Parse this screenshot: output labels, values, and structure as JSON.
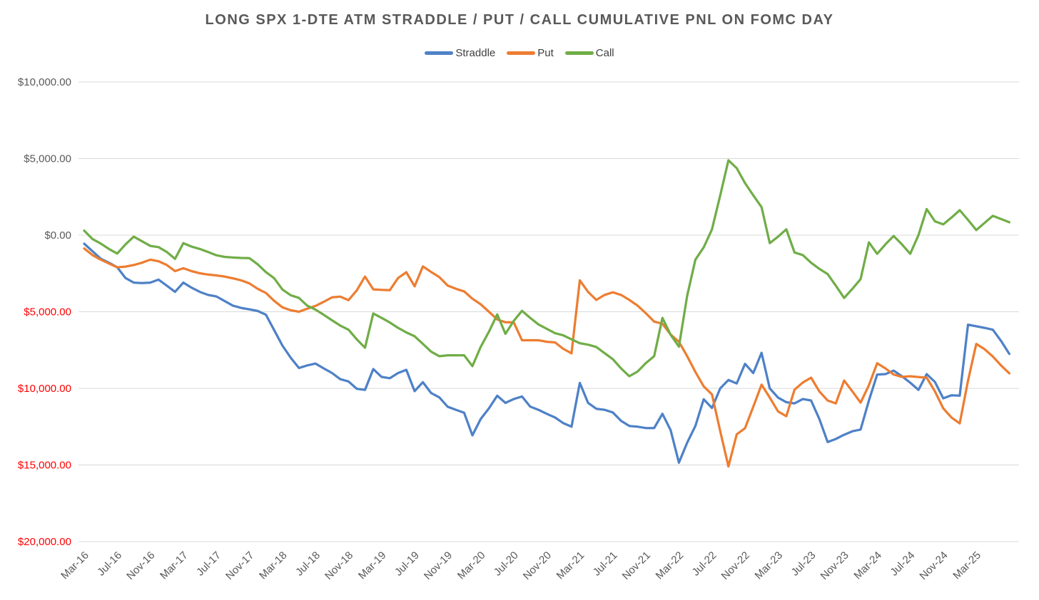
{
  "title": "LONG SPX 1-DTE ATM STRADDLE / PUT / CALL CUMULATIVE PNL ON FOMC DAY",
  "colors": {
    "axis_text": "#595959",
    "negative_axis_text": "#FF0000",
    "gridline": "#D9D9D9",
    "background": "#FFFFFF"
  },
  "chart_data": {
    "type": "line",
    "title": "LONG SPX 1-DTE ATM STRADDLE / PUT / CALL CUMULATIVE PNL ON FOMC DAY",
    "xlabel": "",
    "ylabel": "",
    "grid": "horizontal",
    "legend_position": "top-center",
    "ylim": [
      -20000,
      10000
    ],
    "y_ticks": [
      {
        "label": "$10,000.00",
        "value": 10000
      },
      {
        "label": "$5,000.00",
        "value": 5000
      },
      {
        "label": "$0.00",
        "value": 0
      },
      {
        "label": "$5,000.00",
        "value": -5000
      },
      {
        "label": "$10,000.00",
        "value": -10000
      },
      {
        "label": "$15,000.00",
        "value": -15000
      },
      {
        "label": "$20,000.00",
        "value": -20000
      }
    ],
    "x_tick_labels": [
      "Mar-16",
      "Jul-16",
      "Nov-16",
      "Mar-17",
      "Jul-17",
      "Nov-17",
      "Mar-18",
      "Jul-18",
      "Nov-18",
      "Mar-19",
      "Jul-19",
      "Nov-19",
      "Mar-20",
      "Jul-20",
      "Nov-20",
      "Mar-21",
      "Jul-21",
      "Nov-21",
      "Mar-22",
      "Jul-22",
      "Nov-22",
      "Mar-23",
      "Jul-23",
      "Nov-23",
      "Mar-24",
      "Jul-24",
      "Nov-24",
      "Mar-25"
    ],
    "x_label_every_n_points": 4,
    "points_per_series": 113,
    "series": [
      {
        "name": "Straddle",
        "color": "#4E81C7",
        "values": [
          -560,
          -1050,
          -1540,
          -1800,
          -2100,
          -2800,
          -3100,
          -3130,
          -3100,
          -2900,
          -3300,
          -3700,
          -3100,
          -3430,
          -3700,
          -3900,
          -4000,
          -4300,
          -4600,
          -4750,
          -4840,
          -4950,
          -5190,
          -6200,
          -7210,
          -8000,
          -8670,
          -8500,
          -8380,
          -8700,
          -9000,
          -9400,
          -9550,
          -10030,
          -10100,
          -8740,
          -9250,
          -9340,
          -9000,
          -8790,
          -10180,
          -9600,
          -10300,
          -10590,
          -11200,
          -11400,
          -11590,
          -13070,
          -12000,
          -11300,
          -10480,
          -10950,
          -10700,
          -10530,
          -11190,
          -11400,
          -11660,
          -11900,
          -12270,
          -12500,
          -9640,
          -10950,
          -11330,
          -11400,
          -11570,
          -12120,
          -12450,
          -12500,
          -12590,
          -12590,
          -11660,
          -12730,
          -14850,
          -13540,
          -12450,
          -10710,
          -11280,
          -10000,
          -9450,
          -9680,
          -8400,
          -9000,
          -7680,
          -10000,
          -10600,
          -10900,
          -10980,
          -10700,
          -10790,
          -12000,
          -13500,
          -13300,
          -13030,
          -12800,
          -12690,
          -10800,
          -9100,
          -9070,
          -8840,
          -9210,
          -9630,
          -10100,
          -9070,
          -9580,
          -10650,
          -10450,
          -10480,
          -5840,
          -5950,
          -6050,
          -6170,
          -6900,
          -7750
        ]
      },
      {
        "name": "Put",
        "color": "#ED7D31",
        "values": [
          -870,
          -1300,
          -1600,
          -1850,
          -2100,
          -2050,
          -1950,
          -1800,
          -1600,
          -1700,
          -1950,
          -2350,
          -2160,
          -2350,
          -2490,
          -2570,
          -2630,
          -2700,
          -2820,
          -2950,
          -3150,
          -3500,
          -3770,
          -4290,
          -4710,
          -4900,
          -5000,
          -4800,
          -4620,
          -4350,
          -4060,
          -4010,
          -4240,
          -3600,
          -2700,
          -3540,
          -3570,
          -3590,
          -2800,
          -2420,
          -3340,
          -2040,
          -2400,
          -2740,
          -3290,
          -3500,
          -3670,
          -4150,
          -4510,
          -5000,
          -5500,
          -5690,
          -5690,
          -6860,
          -6860,
          -6860,
          -6960,
          -7000,
          -7420,
          -7710,
          -2950,
          -3700,
          -4230,
          -3900,
          -3730,
          -3900,
          -4230,
          -4600,
          -5100,
          -5640,
          -5780,
          -6490,
          -6960,
          -7900,
          -8930,
          -9870,
          -10390,
          -12800,
          -15100,
          -13000,
          -12600,
          -11200,
          -9760,
          -10600,
          -11500,
          -11820,
          -10090,
          -9620,
          -9300,
          -10200,
          -10790,
          -10980,
          -9490,
          -10200,
          -10930,
          -9800,
          -8360,
          -8700,
          -9100,
          -9250,
          -9210,
          -9260,
          -9300,
          -10200,
          -11300,
          -11900,
          -12290,
          -9500,
          -7100,
          -7440,
          -7920,
          -8500,
          -9020
        ]
      },
      {
        "name": "Call",
        "color": "#70AD47",
        "values": [
          300,
          -250,
          -550,
          -900,
          -1200,
          -600,
          -100,
          -400,
          -700,
          -780,
          -1100,
          -1550,
          -520,
          -750,
          -900,
          -1100,
          -1310,
          -1420,
          -1460,
          -1490,
          -1500,
          -1900,
          -2410,
          -2810,
          -3550,
          -3920,
          -4100,
          -4600,
          -4860,
          -5200,
          -5560,
          -5900,
          -6170,
          -6800,
          -7350,
          -5110,
          -5400,
          -5700,
          -6050,
          -6350,
          -6600,
          -7100,
          -7600,
          -7900,
          -7840,
          -7840,
          -7840,
          -8550,
          -7300,
          -6300,
          -5170,
          -6440,
          -5600,
          -4940,
          -5400,
          -5830,
          -6110,
          -6400,
          -6540,
          -6800,
          -7050,
          -7150,
          -7300,
          -7700,
          -8100,
          -8700,
          -9210,
          -8900,
          -8350,
          -7900,
          -5400,
          -6500,
          -7280,
          -3950,
          -1600,
          -800,
          375,
          2600,
          4890,
          4370,
          3400,
          2600,
          1830,
          -520,
          -100,
          380,
          -1130,
          -1300,
          -1800,
          -2200,
          -2540,
          -3300,
          -4100,
          -3500,
          -2870,
          -470,
          -1220,
          -600,
          -50,
          -600,
          -1220,
          0,
          1700,
          900,
          700,
          1150,
          1630,
          1000,
          330,
          800,
          1260,
          1050,
          840
        ]
      }
    ]
  }
}
